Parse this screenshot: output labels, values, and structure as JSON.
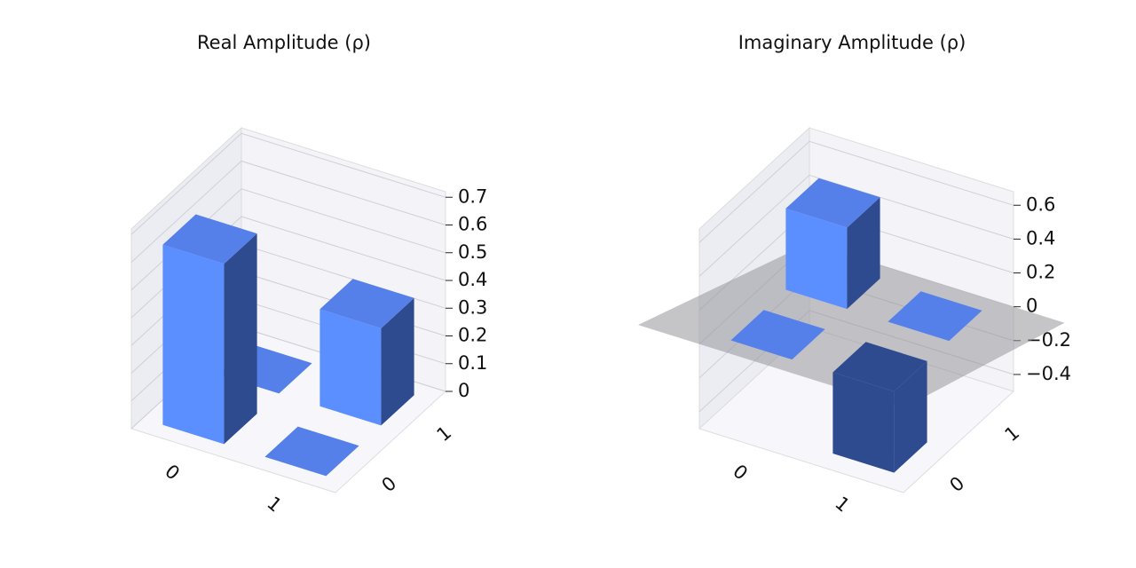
{
  "chart_data": [
    {
      "type": "bar3d",
      "title": "Real Amplitude (ρ)",
      "xcategories": [
        "0",
        "1"
      ],
      "ycategories": [
        "0",
        "1"
      ],
      "values": [
        [
          0.65,
          0.0
        ],
        [
          0.0,
          0.35
        ]
      ],
      "zlim": [
        0,
        0.72
      ],
      "zticks": [
        0.0,
        0.1,
        0.2,
        0.3,
        0.4,
        0.5,
        0.6,
        0.7
      ],
      "color": "#5b8eff",
      "side_color": "#2f4b8f",
      "top_color": "#5580ea",
      "grid": true
    },
    {
      "type": "bar3d",
      "title": "Imaginary Amplitude (ρ)",
      "xcategories": [
        "0",
        "1"
      ],
      "ycategories": [
        "0",
        "1"
      ],
      "values": [
        [
          0.0,
          0.48
        ],
        [
          -0.48,
          0.0
        ]
      ],
      "zlim": [
        -0.5,
        0.68
      ],
      "zticks": [
        {
          "value": -0.4,
          "label": "−0.4"
        },
        {
          "value": -0.2,
          "label": "−0.2"
        },
        0.0,
        0.2,
        0.4,
        0.6
      ],
      "color": "#5b8eff",
      "side_color": "#2f4b8f",
      "top_color": "#5580ea",
      "grid": true
    }
  ]
}
